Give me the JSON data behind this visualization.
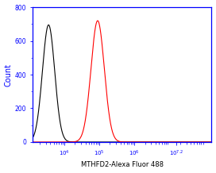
{
  "title": "MTHFD2-Alexa Fluor 488",
  "ylabel": "Count",
  "xlim": [
    1259.0,
    158489319.0
  ],
  "ylim": [
    0,
    800
  ],
  "yticks": [
    0,
    200,
    400,
    600,
    800
  ],
  "black_peak": 3548.0,
  "black_peak_height": 695,
  "black_sigma_log": 0.175,
  "red_peak": 89125.0,
  "red_peak_height": 720,
  "red_sigma_log": 0.19,
  "black_color": "#000000",
  "red_color": "#ff0000",
  "background_color": "#ffffff",
  "spine_color": "#0000ff",
  "tick_color": "#0000ff",
  "label_color": "#0000ff",
  "xlabel_color": "#000000"
}
